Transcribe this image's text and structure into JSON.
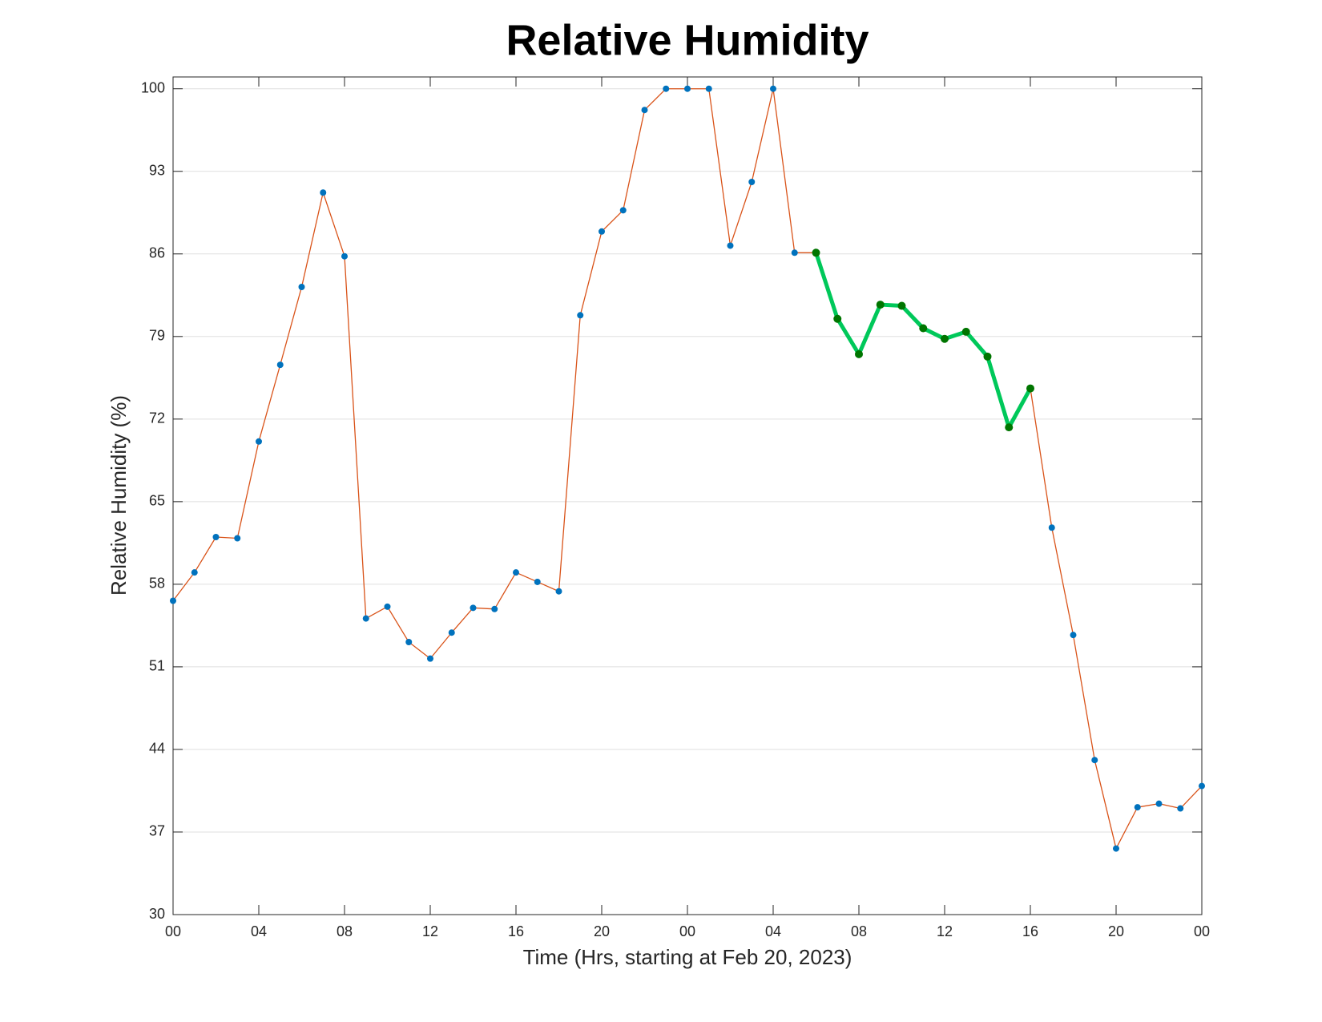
{
  "chart_data": {
    "type": "line",
    "title": "Relative Humidity",
    "xlabel": "Time (Hrs, starting at Feb 20, 2023)",
    "ylabel": "Relative Humidity (%)",
    "x": [
      0,
      1,
      2,
      3,
      4,
      5,
      6,
      7,
      8,
      9,
      10,
      11,
      12,
      13,
      14,
      15,
      16,
      17,
      18,
      19,
      20,
      21,
      22,
      23,
      24,
      25,
      26,
      27,
      28,
      29,
      30,
      31,
      32,
      33,
      34,
      35,
      36,
      37,
      38,
      39,
      40,
      41,
      42,
      43,
      44,
      45,
      46,
      47,
      48
    ],
    "series": [
      {
        "color": "#d95319",
        "marker_color": "#0072bd",
        "values": [
          56.6,
          59.0,
          62.0,
          61.9,
          70.1,
          76.6,
          83.2,
          91.2,
          85.8,
          55.1,
          56.1,
          53.1,
          51.7,
          53.9,
          56.0,
          55.9,
          59.0,
          58.2,
          57.4,
          80.8,
          87.9,
          89.7,
          98.2,
          100,
          100,
          100,
          86.7,
          92.1,
          100,
          86.1,
          86.1,
          80.5,
          77.5,
          81.7,
          81.6,
          79.7,
          78.8,
          79.4,
          77.3,
          71.3,
          74.6,
          62.8,
          53.7,
          43.1,
          35.6,
          39.1,
          39.4,
          39.0,
          40.9
        ]
      },
      {
        "color": "#00c85a",
        "marker_color": "#007500",
        "values": [
          null,
          null,
          null,
          null,
          null,
          null,
          null,
          null,
          null,
          null,
          null,
          null,
          null,
          null,
          null,
          null,
          null,
          null,
          null,
          null,
          null,
          null,
          null,
          null,
          null,
          null,
          null,
          null,
          null,
          null,
          86.1,
          80.5,
          77.5,
          81.7,
          81.6,
          79.7,
          78.8,
          79.4,
          77.3,
          71.3,
          74.6,
          null,
          null,
          null,
          null,
          null,
          null,
          null,
          null
        ]
      }
    ],
    "xlim": [
      0,
      48
    ],
    "xticks": [
      {
        "value": 0,
        "label": "00"
      },
      {
        "value": 4,
        "label": "04"
      },
      {
        "value": 8,
        "label": "08"
      },
      {
        "value": 12,
        "label": "12"
      },
      {
        "value": 16,
        "label": "16"
      },
      {
        "value": 20,
        "label": "20"
      },
      {
        "value": 24,
        "label": "00"
      },
      {
        "value": 28,
        "label": "04"
      },
      {
        "value": 32,
        "label": "08"
      },
      {
        "value": 36,
        "label": "12"
      },
      {
        "value": 40,
        "label": "16"
      },
      {
        "value": 44,
        "label": "20"
      },
      {
        "value": 48,
        "label": "00"
      }
    ],
    "ylim": [
      30,
      101
    ],
    "yticks": [
      30,
      37,
      44,
      51,
      58,
      65,
      72,
      79,
      86,
      93,
      100
    ],
    "grid": "y"
  }
}
